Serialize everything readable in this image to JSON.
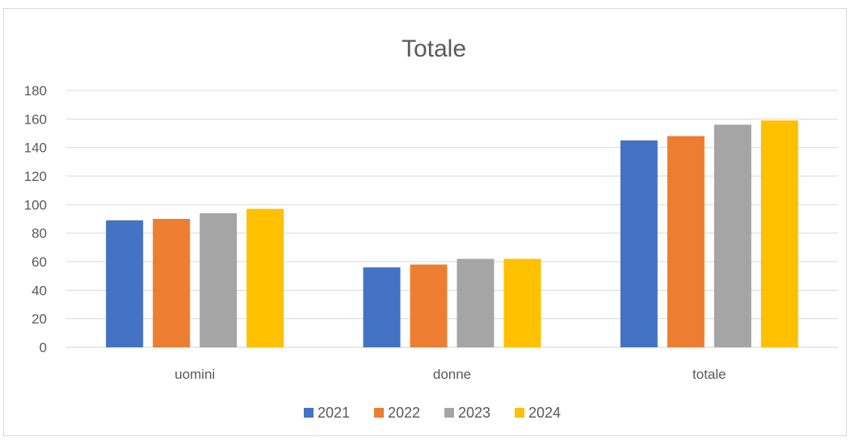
{
  "chart_data": {
    "type": "bar",
    "title": "Totale",
    "xlabel": "",
    "ylabel": "",
    "categories": [
      "uomini",
      "donne",
      "totale"
    ],
    "series": [
      {
        "name": "2021",
        "color": "#4472c4",
        "values": [
          89,
          56,
          145
        ]
      },
      {
        "name": "2022",
        "color": "#ed7d31",
        "values": [
          90,
          58,
          148
        ]
      },
      {
        "name": "2023",
        "color": "#a5a5a5",
        "values": [
          94,
          62,
          156
        ]
      },
      {
        "name": "2024",
        "color": "#ffc000",
        "values": [
          97,
          62,
          159
        ]
      }
    ],
    "ylim": [
      0,
      180
    ],
    "yticks": [
      "0",
      "20",
      "40",
      "60",
      "80",
      "100",
      "120",
      "140",
      "160",
      "180"
    ],
    "grid": true,
    "legend_position": "bottom"
  }
}
